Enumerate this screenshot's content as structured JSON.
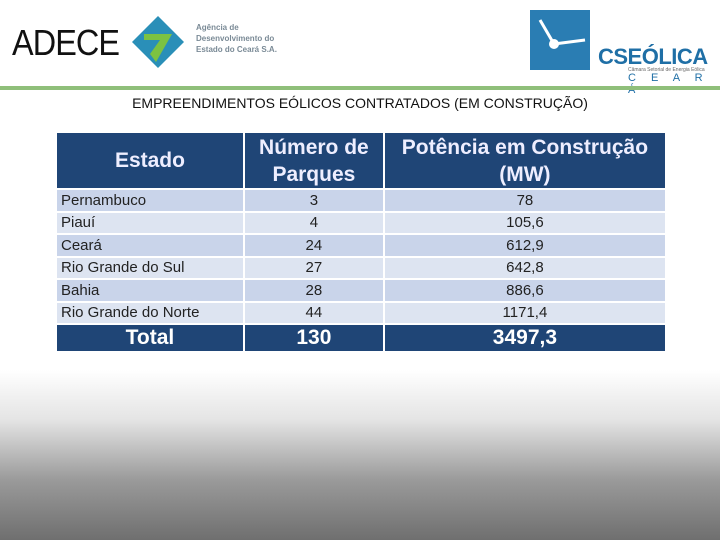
{
  "header": {
    "left_logo": {
      "acronym": "ADECE",
      "agency_lines": [
        "Agência de",
        "Desenvolvimento do",
        "Estado do Ceará S.A."
      ]
    },
    "right_logo": {
      "name": "CSEÓLICA",
      "subtitle": "Câmara Setorial de Energia Eólica",
      "state": "C E A R Á"
    }
  },
  "title": "EMPREENDIMENTOS EÓLICOS CONTRATADOS (EM CONSTRUÇÃO)",
  "table": {
    "columns": [
      "Estado",
      "Número de Parques",
      "Potência em Construção (MW)"
    ],
    "rows": [
      [
        "Pernambuco",
        "3",
        "78"
      ],
      [
        "Piauí",
        "4",
        "105,6"
      ],
      [
        "Ceará",
        "24",
        "612,9"
      ],
      [
        "Rio Grande do Sul",
        "27",
        "642,8"
      ],
      [
        "Bahia",
        "28",
        "886,6"
      ],
      [
        "Rio Grande do Norte",
        "44",
        "1171,4"
      ]
    ],
    "total": [
      "Total",
      "130",
      "3497,3"
    ]
  }
}
